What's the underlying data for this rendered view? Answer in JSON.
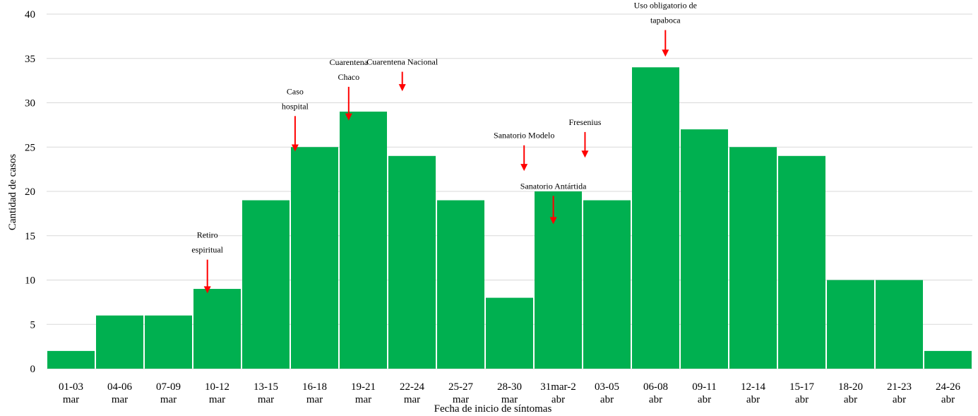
{
  "chart_data": {
    "type": "bar",
    "title": "",
    "xlabel": "Fecha de inicio de síntomas",
    "ylabel": "Cantidad de casos",
    "ylim": [
      0,
      40
    ],
    "yticks": [
      0,
      5,
      10,
      15,
      20,
      25,
      30,
      35,
      40
    ],
    "grid": true,
    "bar_color": "#00b050",
    "annotation_color": "#ff0000",
    "categories": [
      [
        "01-03",
        "mar"
      ],
      [
        "04-06",
        "mar"
      ],
      [
        "07-09",
        "mar"
      ],
      [
        "10-12",
        "mar"
      ],
      [
        "13-15",
        "mar"
      ],
      [
        "16-18",
        "mar"
      ],
      [
        "19-21",
        "mar"
      ],
      [
        "22-24",
        "mar"
      ],
      [
        "25-27",
        "mar"
      ],
      [
        "28-30",
        "mar"
      ],
      [
        "31mar-2",
        "abr"
      ],
      [
        "03-05",
        "abr"
      ],
      [
        "06-08",
        "abr"
      ],
      [
        "09-11",
        "abr"
      ],
      [
        "12-14",
        "abr"
      ],
      [
        "15-17",
        "abr"
      ],
      [
        "18-20",
        "abr"
      ],
      [
        "21-23",
        "abr"
      ],
      [
        "24-26",
        "abr"
      ]
    ],
    "values": [
      2,
      6,
      6,
      9,
      19,
      25,
      29,
      24,
      19,
      8,
      20,
      19,
      34,
      27,
      25,
      24,
      10,
      10,
      2
    ],
    "annotations": [
      {
        "lines": [
          "Retiro",
          "espiritual"
        ],
        "category_index": 2.8,
        "arrow_from": 12.3,
        "arrow_to": 8.5
      },
      {
        "lines": [
          "Caso",
          "hospital"
        ],
        "category_index": 4.6,
        "arrow_from": 28.5,
        "arrow_to": 24.5
      },
      {
        "lines": [
          "Cuarentena",
          "Chaco"
        ],
        "category_index": 5.7,
        "arrow_from": 31.8,
        "arrow_to": 28.0
      },
      {
        "lines": [
          "Cuarentena Nacional"
        ],
        "category_index": 6.8,
        "arrow_from": 33.5,
        "arrow_to": 31.3
      },
      {
        "lines": [
          "Sanatorio  Modelo"
        ],
        "category_index": 9.3,
        "arrow_from": 25.2,
        "arrow_to": 22.3
      },
      {
        "lines": [
          "Sanatorio  Antártida"
        ],
        "category_index": 9.9,
        "arrow_from": 19.5,
        "arrow_to": 16.3
      },
      {
        "lines": [
          "Fresenius"
        ],
        "category_index": 10.55,
        "arrow_from": 26.7,
        "arrow_to": 23.8
      },
      {
        "lines": [
          "Uso obligatorio de",
          "tapaboca"
        ],
        "category_index": 12.2,
        "arrow_from": 38.2,
        "arrow_to": 35.2
      }
    ]
  }
}
